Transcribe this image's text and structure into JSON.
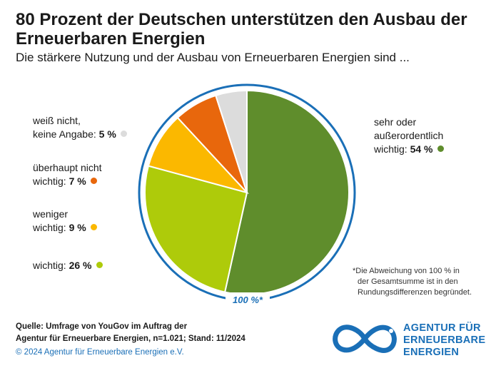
{
  "header": {
    "title": "80 Prozent der Deutschen unterstützen den Ausbau der Erneuerbaren Energien",
    "subtitle": "Die stärkere Nutzung und der Ausbau von Erneuerbaren Energien sind ..."
  },
  "chart_data": {
    "type": "pie",
    "title": "80 Prozent der Deutschen unterstützen den Ausbau der Erneuerbaren Energien",
    "subtitle": "Die stärkere Nutzung und der Ausbau von Erneuerbaren Energien sind ...",
    "total_label": "100 %*",
    "slices": [
      {
        "label_line1": "sehr oder",
        "label_line2": "außerordentlich",
        "label_line3": "wichtig:",
        "value": 54,
        "value_label": "54 %",
        "color": "#5f8d2c"
      },
      {
        "label_line1": "",
        "label_line2": "",
        "label_line3": "wichtig:",
        "value": 26,
        "value_label": "26 %",
        "color": "#aecb0a"
      },
      {
        "label_line1": "",
        "label_line2": "weniger",
        "label_line3": "wichtig:",
        "value": 9,
        "value_label": "9 %",
        "color": "#fbb800"
      },
      {
        "label_line1": "",
        "label_line2": "überhaupt nicht",
        "label_line3": "wichtig:",
        "value": 7,
        "value_label": "7 %",
        "color": "#e8670c"
      },
      {
        "label_line1": "",
        "label_line2": "weiß nicht,",
        "label_line3": "keine Angabe:",
        "value": 5,
        "value_label": "5 %",
        "color": "#dcdcdc"
      }
    ]
  },
  "footnote": {
    "line1": "*Die Abweichung von 100 % in",
    "line2": "der Gesamtsumme ist in den",
    "line3": "Rundungsdifferenzen begründet."
  },
  "source": {
    "line1": "Quelle: Umfrage von YouGov im Auftrag der",
    "line2": "Agentur für Erneuerbare Energien, n=1.021; Stand: 11/2024"
  },
  "copyright": "© 2024 Agentur für Erneuerbare Energien e.V.",
  "logo": {
    "line1": "AGENTUR FÜR",
    "line2": "ERNEUERBARE",
    "line3": "ENERGIEN"
  },
  "colors": {
    "ring": "#1a6fb7",
    "brand": "#1a6fb7"
  }
}
